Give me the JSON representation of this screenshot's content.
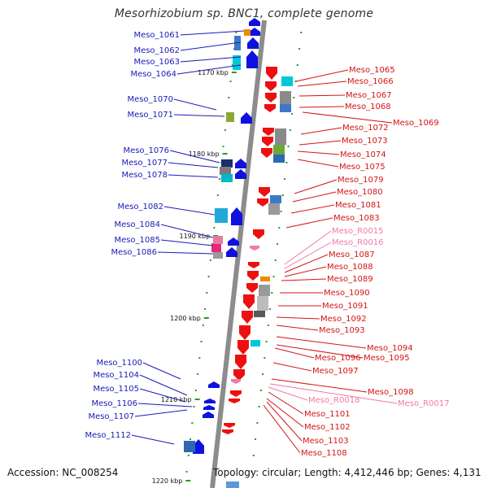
{
  "title": "Mesorhizobium sp. BNC1, complete genome",
  "accession": "Accession: NC_008254",
  "topology": "Topology: circular; Length: 4,412,446 bp; Genes: 4,131",
  "colors": {
    "backbone": "#8c8c8c",
    "forward_strand": "#1010e0",
    "reverse_strand": "#ee1010",
    "rna": "#f07aa8",
    "tick": "#2a9a2a",
    "left_label": "#1a1ab8",
    "right_label": "#d41515"
  },
  "scale_ticks": [
    "1170 kbp",
    "1180 kbp",
    "1190 kbp",
    "1200 kbp",
    "1210 kbp",
    "1220 kbp"
  ],
  "left_genes": [
    "Meso_1061",
    "Meso_1062",
    "Meso_1063",
    "Meso_1064",
    "Meso_1070",
    "Meso_1071",
    "Meso_1076",
    "Meso_1077",
    "Meso_1078",
    "Meso_1082",
    "Meso_1084",
    "Meso_1085",
    "Meso_1086",
    "Meso_1100",
    "Meso_1104",
    "Meso_1105",
    "Meso_1106",
    "Meso_1107",
    "Meso_1112"
  ],
  "right_genes": [
    "Meso_1065",
    "Meso_1066",
    "Meso_1067",
    "Meso_1068",
    "Meso_1069",
    "Meso_1072",
    "Meso_1073",
    "Meso_1074",
    "Meso_1075",
    "Meso_1079",
    "Meso_1080",
    "Meso_1081",
    "Meso_1083",
    "Meso_R0015",
    "Meso_R0016",
    "Meso_1087",
    "Meso_1088",
    "Meso_1089",
    "Meso_1090",
    "Meso_1091",
    "Meso_1092",
    "Meso_1093",
    "Meso_1094",
    "Meso_1096",
    "Meso_1095",
    "Meso_1097",
    "Meso_1098",
    "Meso_R0018",
    "Meso_R0017",
    "Meso_1101",
    "Meso_1102",
    "Meso_1103",
    "Meso_1108"
  ]
}
